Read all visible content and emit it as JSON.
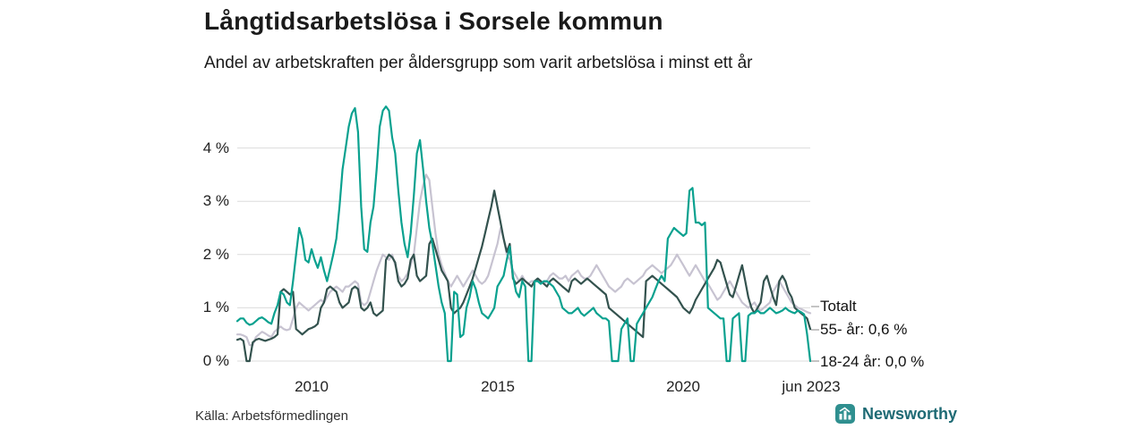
{
  "title": "Långtidsarbetslösa i Sorsele kommun",
  "subtitle": "Andel av arbetskraften per åldersgrupp som varit arbetslösa i minst ett år",
  "source": "Källa: Arbetsförmedlingen",
  "logo": {
    "text": "Newsworthy",
    "icon": "bar-chart-icon",
    "color": "#1e6a74",
    "icon_bg": "#2f8f8f"
  },
  "colors": {
    "grid": "#dcdcdc",
    "leader": "#8a8a8a",
    "totalt": "#c7c3d1",
    "55": "#33524e",
    "18_24": "#0aa18f"
  },
  "chart_data": {
    "type": "line",
    "title": "Långtidsarbetslösa i Sorsele kommun",
    "subtitle": "Andel av arbetskraften per åldersgrupp som varit arbetslösa i minst ett år",
    "x_start": "2008-01",
    "x_end": "2023-06",
    "x_frequency": "monthly",
    "x_tick_labels": [
      "2010",
      "2015",
      "2020",
      "jun 2023"
    ],
    "y_tick_labels": [
      "4 %",
      "3 %",
      "2 %",
      "1 %",
      "0 %"
    ],
    "y_tick_values": [
      4,
      3,
      2,
      1,
      0
    ],
    "ylim": [
      0,
      4.9
    ],
    "grid": "horizontal",
    "legend_position": "right-end-labels",
    "end_labels": {
      "totalt": "Totalt",
      "older": "55- år: 0,6 %",
      "younger": "18-24 år: 0,0 %"
    },
    "series": [
      {
        "name": "Totalt",
        "color": "#c7c3d1",
        "end_label": "Totalt",
        "values": [
          0.5,
          0.5,
          0.48,
          0.45,
          0.3,
          0.3,
          0.45,
          0.5,
          0.55,
          0.52,
          0.48,
          0.45,
          0.55,
          0.6,
          0.65,
          0.6,
          0.58,
          0.6,
          0.8,
          1.0,
          1.1,
          1.05,
          1.0,
          0.95,
          1.0,
          1.05,
          1.1,
          1.15,
          1.1,
          1.2,
          1.3,
          1.35,
          1.4,
          1.35,
          1.3,
          1.4,
          1.4,
          1.45,
          1.5,
          1.45,
          1.1,
          1.05,
          1.1,
          1.3,
          1.5,
          1.7,
          1.85,
          2.0,
          1.95,
          1.9,
          2.0,
          1.8,
          1.6,
          1.5,
          1.55,
          1.65,
          1.8,
          2.0,
          2.5,
          3.0,
          3.3,
          3.5,
          3.4,
          2.9,
          2.4,
          2.0,
          1.8,
          1.65,
          1.5,
          1.4,
          1.5,
          1.6,
          1.5,
          1.4,
          1.5,
          1.6,
          1.7,
          1.6,
          1.5,
          1.45,
          1.5,
          1.6,
          1.8,
          2.0,
          2.2,
          2.5,
          2.3,
          2.0,
          1.9,
          1.7,
          1.6,
          1.5,
          1.6,
          1.5,
          1.45,
          1.5,
          1.5,
          1.55,
          1.5,
          1.45,
          1.5,
          1.6,
          1.65,
          1.6,
          1.55,
          1.55,
          1.6,
          1.5,
          1.6,
          1.65,
          1.7,
          1.6,
          1.55,
          1.55,
          1.6,
          1.7,
          1.8,
          1.7,
          1.6,
          1.5,
          1.4,
          1.35,
          1.3,
          1.35,
          1.4,
          1.5,
          1.55,
          1.5,
          1.45,
          1.5,
          1.55,
          1.6,
          1.7,
          1.75,
          1.8,
          1.75,
          1.7,
          1.65,
          1.7,
          1.75,
          1.8,
          1.9,
          2.0,
          1.9,
          1.8,
          1.7,
          1.6,
          1.7,
          1.8,
          1.7,
          1.6,
          1.5,
          1.45,
          1.35,
          1.25,
          1.15,
          1.2,
          1.3,
          1.4,
          1.5,
          1.4,
          1.3,
          1.2,
          1.1,
          1.05,
          1.0,
          1.05,
          1.1,
          1.0,
          0.95,
          1.0,
          1.05,
          1.1,
          1.3,
          1.4,
          1.5,
          1.4,
          1.3,
          1.2,
          1.1,
          1.05,
          1.0,
          0.98,
          0.95,
          0.92,
          0.9
        ]
      },
      {
        "name": "55- år",
        "color": "#33524e",
        "end_label": "55- år: 0,6 %",
        "end_value": 0.6,
        "values": [
          0.4,
          0.42,
          0.38,
          0.0,
          0.0,
          0.35,
          0.4,
          0.42,
          0.4,
          0.38,
          0.4,
          0.42,
          0.45,
          0.5,
          1.3,
          1.35,
          1.3,
          1.25,
          1.3,
          0.6,
          0.55,
          0.5,
          0.55,
          0.6,
          0.62,
          0.65,
          0.7,
          1.0,
          1.1,
          1.35,
          1.4,
          1.35,
          1.3,
          1.1,
          1.0,
          1.05,
          1.1,
          1.35,
          1.4,
          1.35,
          1.0,
          0.95,
          1.0,
          1.1,
          0.9,
          0.85,
          0.9,
          0.95,
          1.9,
          2.0,
          1.95,
          1.85,
          1.5,
          1.4,
          1.45,
          1.55,
          1.9,
          2.0,
          1.6,
          1.5,
          1.55,
          1.6,
          2.2,
          2.3,
          2.1,
          1.9,
          1.7,
          1.6,
          1.5,
          1.0,
          0.9,
          0.95,
          1.0,
          1.1,
          1.25,
          1.4,
          1.55,
          1.75,
          1.95,
          2.15,
          2.4,
          2.65,
          2.9,
          3.2,
          2.9,
          2.6,
          2.3,
          2.05,
          2.2,
          1.55,
          1.45,
          1.5,
          1.55,
          1.5,
          1.45,
          1.4,
          1.5,
          1.55,
          1.5,
          1.45,
          1.4,
          1.5,
          1.55,
          1.5,
          1.45,
          1.4,
          1.35,
          1.3,
          1.5,
          1.55,
          1.5,
          1.45,
          1.5,
          1.55,
          1.5,
          1.45,
          1.4,
          1.35,
          1.3,
          1.25,
          1.0,
          0.95,
          0.9,
          0.85,
          0.8,
          0.75,
          0.7,
          0.65,
          0.6,
          0.55,
          0.5,
          0.45,
          1.5,
          1.55,
          1.6,
          1.55,
          1.5,
          1.45,
          1.4,
          1.35,
          1.3,
          1.25,
          1.2,
          1.1,
          1.0,
          0.95,
          0.9,
          1.0,
          1.15,
          1.25,
          1.35,
          1.45,
          1.55,
          1.65,
          1.75,
          1.9,
          1.85,
          1.65,
          1.45,
          1.25,
          1.2,
          1.4,
          1.6,
          1.8,
          1.5,
          1.2,
          1.0,
          0.9,
          1.0,
          1.1,
          1.5,
          1.6,
          1.4,
          1.2,
          1.05,
          1.5,
          1.6,
          1.5,
          1.3,
          1.2,
          1.0,
          0.95,
          0.9,
          0.85,
          0.8,
          0.6
        ]
      },
      {
        "name": "18-24 år",
        "color": "#0aa18f",
        "end_label": "18-24 år: 0,0 %",
        "end_value": 0.0,
        "values": [
          0.75,
          0.8,
          0.8,
          0.72,
          0.68,
          0.7,
          0.75,
          0.8,
          0.82,
          0.78,
          0.73,
          0.7,
          0.9,
          1.05,
          1.3,
          1.25,
          1.1,
          1.05,
          1.5,
          2.0,
          2.5,
          2.3,
          1.9,
          1.85,
          2.1,
          1.9,
          1.75,
          1.95,
          1.7,
          1.5,
          1.75,
          2.0,
          2.3,
          2.9,
          3.6,
          4.0,
          4.4,
          4.65,
          4.75,
          4.3,
          2.9,
          2.1,
          2.05,
          2.6,
          2.9,
          3.6,
          4.4,
          4.7,
          4.78,
          4.7,
          4.2,
          3.9,
          3.2,
          2.6,
          2.2,
          1.95,
          2.4,
          3.1,
          3.9,
          4.15,
          3.6,
          3.0,
          2.5,
          2.2,
          1.8,
          1.4,
          1.1,
          0.9,
          0.0,
          0.0,
          1.3,
          1.25,
          0.45,
          0.5,
          1.0,
          1.2,
          1.5,
          1.35,
          1.1,
          0.9,
          0.85,
          0.8,
          0.9,
          1.0,
          1.4,
          1.5,
          1.6,
          1.9,
          2.15,
          1.6,
          1.3,
          1.2,
          1.5,
          1.4,
          0.0,
          0.0,
          1.5,
          1.5,
          1.45,
          1.5,
          1.5,
          1.45,
          1.4,
          1.3,
          1.2,
          1.0,
          0.95,
          0.9,
          0.9,
          0.95,
          1.0,
          0.9,
          0.85,
          0.9,
          0.95,
          1.0,
          0.9,
          0.85,
          0.8,
          0.8,
          0.75,
          0.0,
          0.0,
          0.0,
          0.6,
          0.7,
          0.8,
          0.0,
          0.0,
          0.7,
          0.8,
          0.9,
          1.0,
          1.1,
          1.2,
          1.35,
          1.5,
          1.6,
          1.5,
          2.3,
          2.4,
          2.5,
          2.45,
          2.4,
          2.35,
          2.4,
          3.2,
          3.25,
          2.6,
          2.6,
          2.55,
          2.6,
          1.0,
          0.95,
          0.9,
          0.85,
          0.8,
          0.8,
          0.0,
          0.0,
          0.8,
          0.85,
          0.9,
          0.0,
          0.0,
          0.85,
          0.9,
          0.9,
          0.95,
          0.9,
          0.9,
          0.95,
          1.0,
          0.95,
          0.9,
          0.92,
          0.95,
          1.0,
          0.95,
          0.92,
          0.9,
          0.95,
          0.92,
          0.88,
          0.5,
          0.0
        ]
      }
    ]
  }
}
